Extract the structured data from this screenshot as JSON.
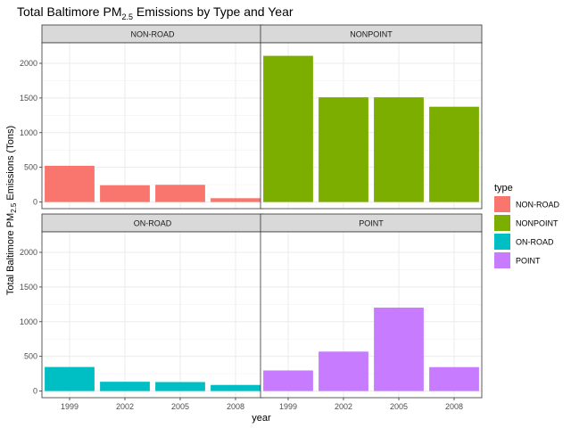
{
  "chart_data": {
    "type": "bar",
    "title": "Total Baltimore PM",
    "title_subscript": "2.5",
    "title_suffix": " Emissions by Type and Year",
    "xlabel": "year",
    "ylabel": "Total Baltimore PM",
    "ylabel_subscript": "2.5",
    "ylabel_suffix": " Emissions (Tons)",
    "categories": [
      "1999",
      "2002",
      "2005",
      "2008"
    ],
    "ylim": [
      0,
      2200
    ],
    "y_ticks": [
      0,
      500,
      1000,
      1500,
      2000
    ],
    "grid": true,
    "legend": {
      "title": "type",
      "position": "right"
    },
    "series": [
      {
        "name": "NON-ROAD",
        "color": "#F8766D",
        "values": [
          522,
          242,
          248,
          55
        ]
      },
      {
        "name": "NONPOINT",
        "color": "#7CAE00",
        "values": [
          2108,
          1510,
          1510,
          1374
        ]
      },
      {
        "name": "ON-ROAD",
        "color": "#00BFC4",
        "values": [
          347,
          134,
          130,
          88
        ]
      },
      {
        "name": "POINT",
        "color": "#C77CFF",
        "values": [
          297,
          569,
          1203,
          345
        ]
      }
    ]
  }
}
